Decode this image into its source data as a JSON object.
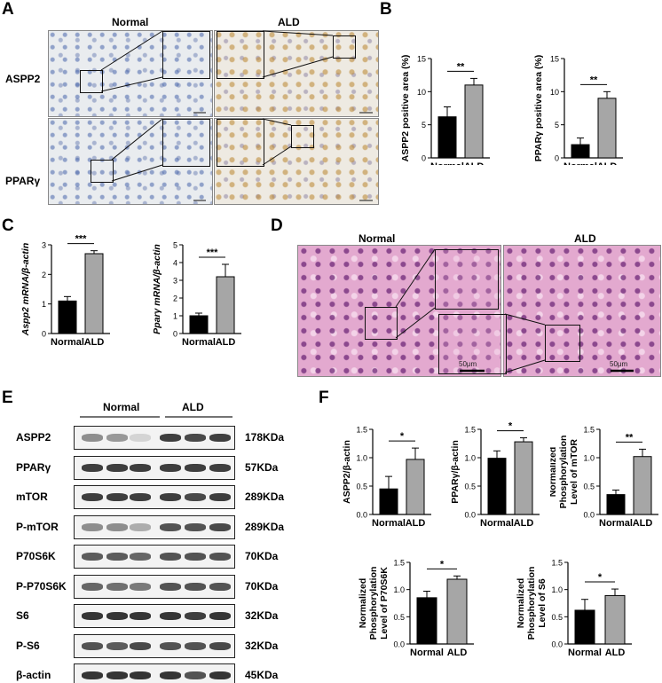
{
  "panels": {
    "A": "A",
    "B": "B",
    "C": "C",
    "D": "D",
    "E": "E",
    "F": "F"
  },
  "panel_a": {
    "col_normal": "Normal",
    "col_ald": "ALD",
    "row1": "ASPP2",
    "row2": "PPARγ"
  },
  "panel_d": {
    "col_normal": "Normal",
    "col_ald": "ALD",
    "scale_left": "50μm",
    "scale_right": "50μm"
  },
  "panel_e": {
    "group_normal": "Normal",
    "group_ald": "ALD",
    "rows": [
      {
        "label": "ASPP2",
        "mw": "178KDa"
      },
      {
        "label": "PPARγ",
        "mw": "57KDa"
      },
      {
        "label": "mTOR",
        "mw": "289KDa"
      },
      {
        "label": "P-mTOR",
        "mw": "289KDa"
      },
      {
        "label": "P70S6K",
        "mw": "70KDa"
      },
      {
        "label": "P-P70S6K",
        "mw": "70KDa"
      },
      {
        "label": "S6",
        "mw": "32KDa"
      },
      {
        "label": "P-S6",
        "mw": "32KDa"
      },
      {
        "label": "β-actin",
        "mw": "45KDa"
      }
    ],
    "band_intensity": [
      [
        0.5,
        0.45,
        0.15,
        0.9,
        0.85,
        0.9
      ],
      [
        0.9,
        0.9,
        0.9,
        0.9,
        0.9,
        0.9
      ],
      [
        0.9,
        0.9,
        0.9,
        0.9,
        0.85,
        0.9
      ],
      [
        0.5,
        0.5,
        0.35,
        0.8,
        0.8,
        0.85
      ],
      [
        0.75,
        0.75,
        0.7,
        0.8,
        0.8,
        0.8
      ],
      [
        0.7,
        0.65,
        0.6,
        0.8,
        0.8,
        0.8
      ],
      [
        0.95,
        0.95,
        0.95,
        0.95,
        0.9,
        0.95
      ],
      [
        0.8,
        0.75,
        0.85,
        0.8,
        0.8,
        0.85
      ],
      [
        0.95,
        0.95,
        0.95,
        0.95,
        0.8,
        0.95
      ]
    ]
  },
  "colors": {
    "normal_bar": "#000000",
    "ald_bar": "#a6a6a6"
  },
  "chart_data": [
    {
      "id": "B1",
      "type": "bar",
      "categories": [
        "Normal",
        "ALD"
      ],
      "values": [
        6.2,
        11.0
      ],
      "errors": [
        1.5,
        1.0
      ],
      "ylabel": "ASPP2 positive area (%)",
      "ylim": [
        0,
        15
      ],
      "ticks": [
        0,
        5,
        10,
        15
      ],
      "sig": "**"
    },
    {
      "id": "B2",
      "type": "bar",
      "categories": [
        "Normal",
        "ALD"
      ],
      "values": [
        2.0,
        9.0
      ],
      "errors": [
        1.0,
        1.0
      ],
      "ylabel": "PPARγ positive area  (%)",
      "ylim": [
        0,
        15
      ],
      "ticks": [
        0,
        5,
        10,
        15
      ],
      "sig": "**"
    },
    {
      "id": "C1",
      "type": "bar",
      "categories": [
        "Normal",
        "ALD"
      ],
      "values": [
        1.1,
        2.7
      ],
      "errors": [
        0.15,
        0.1
      ],
      "ylabel": "Aspp2 mRNA/β-actin",
      "ylim": [
        0,
        3
      ],
      "ticks": [
        0,
        1,
        2,
        3
      ],
      "sig": "***"
    },
    {
      "id": "C2",
      "type": "bar",
      "categories": [
        "Normal",
        "ALD"
      ],
      "values": [
        1.0,
        3.2
      ],
      "errors": [
        0.15,
        0.7
      ],
      "ylabel": "Pparγ mRNA/β-actin",
      "ylim": [
        0,
        5
      ],
      "ticks": [
        0,
        1,
        2,
        3,
        4,
        5
      ],
      "sig": "***"
    },
    {
      "id": "F1",
      "type": "bar",
      "categories": [
        "Normal",
        "ALD"
      ],
      "values": [
        0.45,
        0.97
      ],
      "errors": [
        0.22,
        0.2
      ],
      "ylabel": "ASPP2/β-actin",
      "ylim": [
        0,
        1.5
      ],
      "ticks": [
        "0.0",
        "0.5",
        "1.0",
        "1.5"
      ],
      "sig": "*"
    },
    {
      "id": "F2",
      "type": "bar",
      "categories": [
        "Normal",
        "ALD"
      ],
      "values": [
        0.99,
        1.28
      ],
      "errors": [
        0.13,
        0.07
      ],
      "ylabel": "PPARγ/β-actin",
      "ylim": [
        0,
        1.5
      ],
      "ticks": [
        "0.0",
        "0.5",
        "1.0",
        "1.5"
      ],
      "sig": "*"
    },
    {
      "id": "F3",
      "type": "bar",
      "categories": [
        "Normal",
        "ALD"
      ],
      "values": [
        0.35,
        1.02
      ],
      "errors": [
        0.08,
        0.13
      ],
      "ylabel": "Normalized Phosphorylation Level of mTOR",
      "ylim": [
        0,
        1.5
      ],
      "ticks": [
        "0.0",
        "0.5",
        "1.0",
        "1.5"
      ],
      "sig": "**"
    },
    {
      "id": "F4",
      "type": "bar",
      "categories": [
        "Normal",
        "ALD"
      ],
      "values": [
        0.85,
        1.19
      ],
      "errors": [
        0.12,
        0.06
      ],
      "ylabel": "Normalized Phosphorylation Level of P70S6K",
      "ylim": [
        0,
        1.5
      ],
      "ticks": [
        "0.0",
        "0.5",
        "1.0",
        "1.5"
      ],
      "sig": "*"
    },
    {
      "id": "F5",
      "type": "bar",
      "categories": [
        "Normal",
        "ALD"
      ],
      "values": [
        0.62,
        0.89
      ],
      "errors": [
        0.2,
        0.12
      ],
      "ylabel": "Normalized Phosphorylation Level of S6",
      "ylim": [
        0,
        1.5
      ],
      "ticks": [
        "0.0",
        "0.5",
        "1.0",
        "1.5"
      ],
      "sig": "*"
    }
  ]
}
